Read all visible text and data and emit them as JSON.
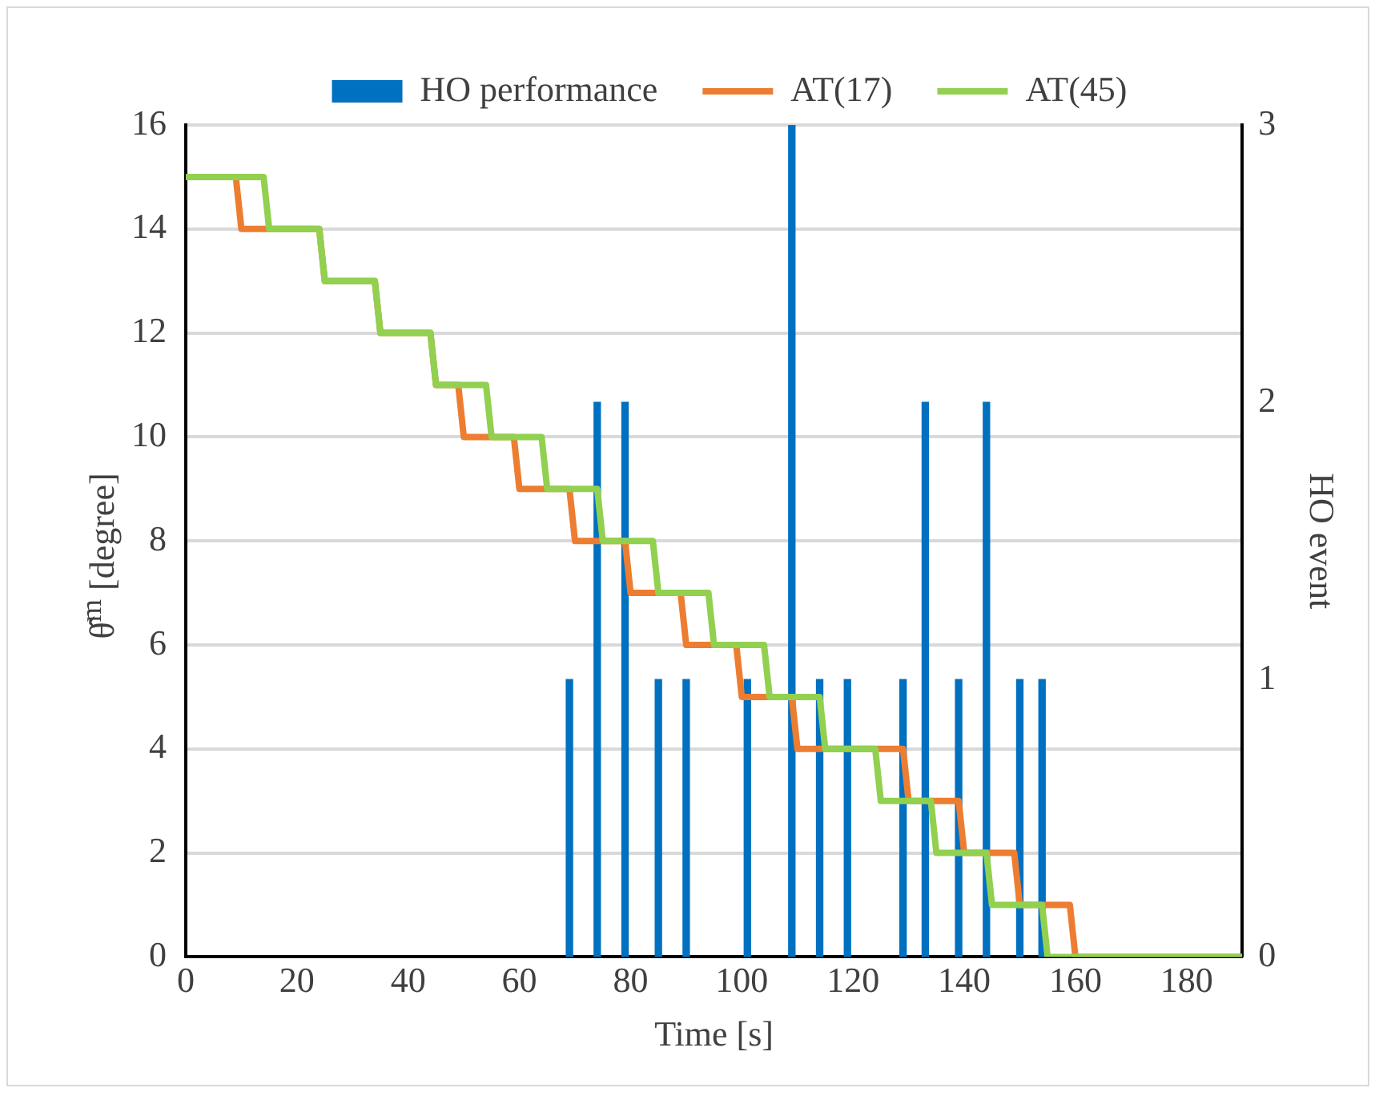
{
  "chart_data": {
    "type": "line",
    "xlabel": "Time [s]",
    "ylabel": "θ̂$^{m}$  [degree]",
    "y2label": "HO event",
    "xlim": [
      0,
      190
    ],
    "xticks": [
      0,
      20,
      40,
      60,
      80,
      100,
      120,
      140,
      160,
      180
    ],
    "ylim": [
      0,
      16
    ],
    "yticks": [
      0,
      2,
      4,
      6,
      8,
      10,
      12,
      14,
      16
    ],
    "y2lim": [
      0,
      3
    ],
    "y2ticks": [
      0,
      1,
      2,
      3
    ],
    "grid": "y",
    "legend": "top",
    "marker": "none",
    "line_style": "solid",
    "series": [
      {
        "name": "HO performance",
        "type": "bar",
        "axis": "y2",
        "color": "#0070c0",
        "x": [
          69,
          74,
          79,
          85,
          90,
          101,
          109,
          114,
          119,
          129,
          133,
          139,
          144,
          150,
          154
        ],
        "values": [
          1,
          2,
          2,
          1,
          1,
          1,
          3,
          1,
          1,
          1,
          2,
          1,
          2,
          1,
          1
        ]
      },
      {
        "name": "AT(17)",
        "color": "#ed7d31",
        "x": [
          0,
          9,
          10,
          24,
          25,
          34,
          35,
          44,
          45,
          49,
          50,
          59,
          60,
          69,
          70,
          79,
          80,
          89,
          90,
          99,
          100,
          109,
          110,
          129,
          130,
          139,
          140,
          149,
          150,
          159,
          160,
          190
        ],
        "values": [
          15,
          15,
          14,
          14,
          13,
          13,
          12,
          12,
          11,
          11,
          10,
          10,
          9,
          9,
          8,
          8,
          7,
          7,
          6,
          6,
          5,
          5,
          4,
          4,
          3,
          3,
          2,
          2,
          1,
          1,
          0,
          0
        ]
      },
      {
        "name": "AT(45)",
        "color": "#92d050",
        "x": [
          0,
          14,
          15,
          24,
          25,
          34,
          35,
          44,
          45,
          54,
          55,
          64,
          65,
          74,
          75,
          84,
          85,
          94,
          95,
          104,
          105,
          114,
          115,
          124,
          125,
          134,
          135,
          144,
          145,
          154,
          155,
          190
        ],
        "values": [
          15,
          15,
          14,
          14,
          13,
          13,
          12,
          12,
          11,
          11,
          10,
          10,
          9,
          9,
          8,
          8,
          7,
          7,
          6,
          6,
          5,
          5,
          4,
          4,
          3,
          3,
          2,
          2,
          1,
          1,
          0,
          0
        ]
      }
    ]
  }
}
